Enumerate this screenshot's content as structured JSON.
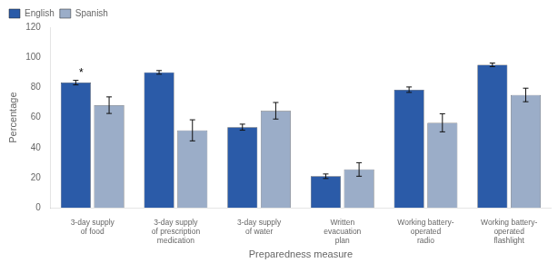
{
  "chart_data": {
    "type": "bar",
    "xlabel": "Preparedness measure",
    "ylabel": "Percentage",
    "categories": [
      "3-day supply\nof food",
      "3-day supply\nof prescription\nmedication",
      "3-day supply\nof water",
      "Written\nevacuation\nplan",
      "Working battery-\noperated\nradio",
      "Working battery-\noperated\nflashlight"
    ],
    "series": [
      {
        "name": "English",
        "color": "#2B5BA8",
        "values": [
          83.2,
          90.0,
          53.6,
          21.0,
          78.5,
          95.0
        ],
        "errors": [
          1.5,
          1.2,
          2.0,
          1.5,
          1.8,
          1.2
        ]
      },
      {
        "name": "Spanish",
        "color": "#9BADC8",
        "values": [
          68.2,
          51.5,
          64.5,
          25.5,
          56.5,
          75.0
        ],
        "errors": [
          5.5,
          7.0,
          5.5,
          4.5,
          6.0,
          4.5
        ]
      }
    ],
    "annotations": [
      {
        "text": "*",
        "series": "English",
        "category": "3-day supply\nof food"
      }
    ],
    "ylim": [
      0,
      120
    ],
    "yticks": [
      0,
      20,
      40,
      60,
      80,
      100,
      120
    ],
    "grid": false,
    "legend": "upper left"
  }
}
